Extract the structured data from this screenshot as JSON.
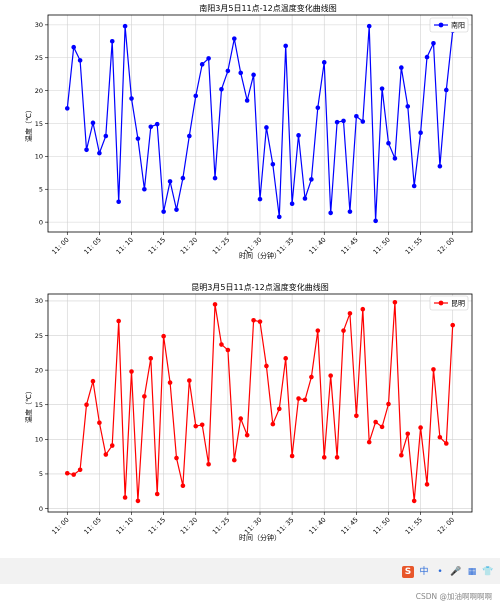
{
  "x_ticks": [
    "11: 00",
    "11: 05",
    "11: 10",
    "11: 15",
    "11: 20",
    "11: 25",
    "11: 30",
    "11: 35",
    "11: 40",
    "11: 45",
    "11: 50",
    "11: 55",
    "12: 00"
  ],
  "chart_data": [
    {
      "type": "line",
      "title": "南阳3月5日11点-12点温度变化曲线图",
      "xlabel": "时间（分钟）",
      "ylabel": "温度（℃）",
      "ylim": [
        -1.5,
        31.5
      ],
      "yticks": [
        0,
        5,
        10,
        15,
        20,
        25,
        30
      ],
      "grid": true,
      "legend": "top-right",
      "color": "#0000ff",
      "series": [
        {
          "name": "南阳",
          "x": [
            0,
            1,
            2,
            3,
            4,
            5,
            6,
            7,
            8,
            9,
            10,
            11,
            12,
            13,
            14,
            15,
            16,
            17,
            18,
            19,
            20,
            21,
            22,
            23,
            24,
            25,
            26,
            27,
            28,
            29,
            30,
            31,
            32,
            33,
            34,
            35,
            36,
            37,
            38,
            39,
            40,
            41,
            42,
            43,
            44,
            45,
            46,
            47,
            48,
            49,
            50,
            51,
            52,
            53,
            54,
            55,
            56,
            57,
            58,
            59,
            60
          ],
          "values": [
            17.3,
            26.6,
            24.6,
            11.0,
            15.1,
            10.5,
            13.1,
            27.5,
            3.1,
            29.8,
            18.8,
            12.7,
            5.0,
            14.5,
            14.9,
            1.6,
            6.2,
            1.9,
            6.7,
            13.1,
            19.2,
            24.0,
            24.9,
            6.7,
            20.2,
            23.0,
            27.9,
            22.7,
            18.5,
            22.4,
            3.5,
            14.4,
            8.8,
            0.8,
            26.8,
            2.8,
            13.2,
            3.6,
            6.5,
            17.4,
            24.3,
            1.4,
            15.2,
            15.4,
            1.6,
            16.1,
            15.3,
            29.8,
            0.2,
            20.3,
            12.0,
            9.7,
            23.5,
            17.6,
            5.5,
            13.6,
            25.1,
            27.2,
            8.5,
            20.1,
            29.1
          ]
        }
      ]
    },
    {
      "type": "line",
      "title": "昆明3月5日11点-12点温度变化曲线图",
      "xlabel": "时间（分钟）",
      "ylabel": "温度（℃）",
      "ylim": [
        -0.5,
        31
      ],
      "yticks": [
        0,
        5,
        10,
        15,
        20,
        25,
        30
      ],
      "grid": true,
      "legend": "top-right",
      "color": "#ff0000",
      "series": [
        {
          "name": "昆明",
          "x": [
            0,
            1,
            2,
            3,
            4,
            5,
            6,
            7,
            8,
            9,
            10,
            11,
            12,
            13,
            14,
            15,
            16,
            17,
            18,
            19,
            20,
            21,
            22,
            23,
            24,
            25,
            26,
            27,
            28,
            29,
            30,
            31,
            32,
            33,
            34,
            35,
            36,
            37,
            38,
            39,
            40,
            41,
            42,
            43,
            44,
            45,
            46,
            47,
            48,
            49,
            50,
            51,
            52,
            53,
            54,
            55,
            56,
            57,
            58,
            59,
            60
          ],
          "values": [
            5.1,
            4.9,
            5.6,
            15.0,
            18.4,
            12.4,
            7.8,
            9.1,
            27.1,
            1.6,
            19.8,
            1.1,
            16.2,
            21.7,
            2.1,
            24.9,
            18.2,
            7.3,
            3.3,
            18.5,
            11.9,
            12.1,
            6.4,
            29.5,
            23.7,
            22.9,
            7.0,
            13.0,
            10.6,
            27.2,
            27.0,
            20.6,
            12.2,
            14.4,
            21.7,
            7.6,
            15.9,
            15.7,
            19.0,
            25.7,
            7.4,
            19.2,
            7.4,
            25.7,
            28.2,
            13.4,
            28.8,
            9.6,
            12.5,
            11.8,
            15.1,
            29.8,
            7.7,
            10.8,
            1.1,
            11.7,
            3.5,
            20.1,
            10.3,
            9.4,
            26.5
          ]
        }
      ]
    }
  ],
  "ime_toolbar": {
    "logo": "S",
    "items": [
      "中",
      "•",
      "🎤",
      "▦",
      "👕"
    ]
  },
  "watermark": "CSDN @加油啊啊啊啊"
}
